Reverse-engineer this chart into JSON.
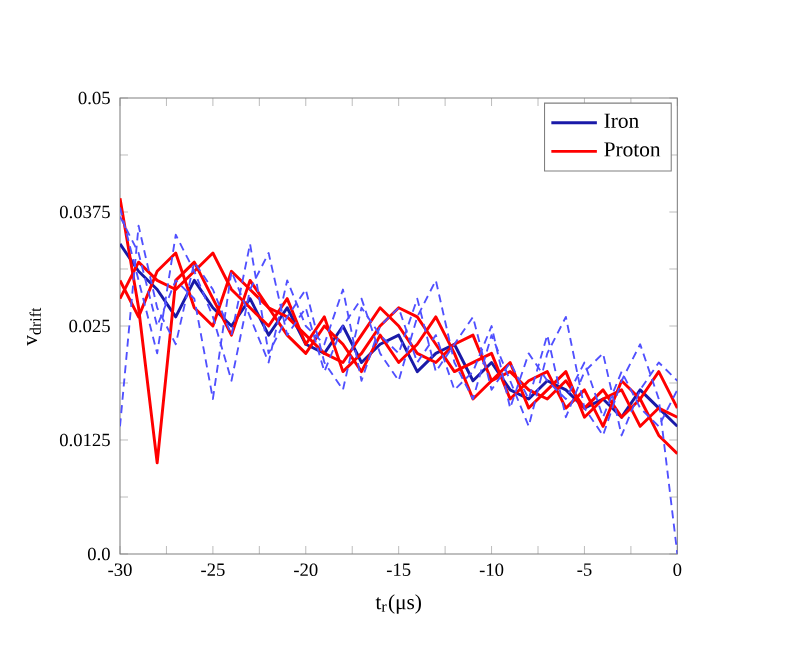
{
  "chart_data": {
    "type": "line",
    "xlabel": "t$_{r}$(μs)",
    "ylabel": "v$_{drift}$",
    "x": [
      -30,
      -29,
      -28,
      -27,
      -26,
      -25,
      -24,
      -23,
      -22,
      -21,
      -20,
      -19,
      -18,
      -17,
      -16,
      -15,
      -14,
      -13,
      -12,
      -11,
      -10,
      -9,
      -8,
      -7,
      -6,
      -5,
      -4,
      -3,
      -2,
      -1,
      0
    ],
    "series": [
      {
        "name": "Iron",
        "color": "#1a1aa8",
        "line_style": "solid",
        "values": [
          0.034,
          0.031,
          0.029,
          0.026,
          0.03,
          0.027,
          0.025,
          0.028,
          0.024,
          0.027,
          0.023,
          0.022,
          0.025,
          0.021,
          0.023,
          0.024,
          0.02,
          0.022,
          0.023,
          0.019,
          0.021,
          0.018,
          0.017,
          0.019,
          0.018,
          0.016,
          0.017,
          0.015,
          0.018,
          0.016,
          0.014
        ]
      },
      {
        "name": "Proton",
        "color": "#ff0000",
        "line_style": "solid",
        "values": [
          0.039,
          0.027,
          0.01,
          0.03,
          0.032,
          0.028,
          0.024,
          0.03,
          0.027,
          0.026,
          0.024,
          0.022,
          0.021,
          0.024,
          0.027,
          0.025,
          0.022,
          0.021,
          0.023,
          0.024,
          0.019,
          0.02,
          0.018,
          0.017,
          0.019,
          0.016,
          0.018,
          0.015,
          0.017,
          0.013,
          0.011
        ]
      },
      {
        "color": "#ff0000",
        "line_style": "solid",
        "values": [
          0.028,
          0.032,
          0.03,
          0.029,
          0.031,
          0.033,
          0.029,
          0.027,
          0.025,
          0.028,
          0.023,
          0.026,
          0.02,
          0.022,
          0.025,
          0.027,
          0.026,
          0.023,
          0.02,
          0.021,
          0.022,
          0.017,
          0.019,
          0.02,
          0.016,
          0.018,
          0.014,
          0.019,
          0.017,
          0.02,
          0.016
        ]
      },
      {
        "color": "#ff0000",
        "line_style": "solid",
        "values": [
          0.03,
          0.026,
          0.031,
          0.033,
          0.027,
          0.025,
          0.031,
          0.029,
          0.027,
          0.024,
          0.022,
          0.025,
          0.023,
          0.02,
          0.024,
          0.021,
          0.023,
          0.026,
          0.022,
          0.017,
          0.019,
          0.021,
          0.016,
          0.018,
          0.02,
          0.015,
          0.017,
          0.018,
          0.014,
          0.016,
          0.015
        ]
      },
      {
        "color": "#5050ff",
        "line_style": "dashed",
        "values": [
          0.038,
          0.03,
          0.022,
          0.035,
          0.031,
          0.026,
          0.019,
          0.029,
          0.033,
          0.024,
          0.027,
          0.02,
          0.025,
          0.028,
          0.022,
          0.019,
          0.026,
          0.03,
          0.021,
          0.017,
          0.024,
          0.019,
          0.014,
          0.022,
          0.026,
          0.016,
          0.013,
          0.019,
          0.023,
          0.017,
          0.0
        ]
      },
      {
        "color": "#5050ff",
        "line_style": "dashed",
        "values": [
          0.014,
          0.036,
          0.027,
          0.023,
          0.032,
          0.029,
          0.024,
          0.034,
          0.022,
          0.026,
          0.029,
          0.021,
          0.018,
          0.027,
          0.024,
          0.022,
          0.028,
          0.02,
          0.023,
          0.026,
          0.018,
          0.021,
          0.017,
          0.024,
          0.015,
          0.02,
          0.022,
          0.013,
          0.018,
          0.021,
          0.019
        ]
      },
      {
        "color": "#5050ff",
        "line_style": "dashed",
        "values": [
          0.037,
          0.033,
          0.025,
          0.03,
          0.028,
          0.017,
          0.031,
          0.026,
          0.021,
          0.03,
          0.025,
          0.023,
          0.029,
          0.019,
          0.025,
          0.027,
          0.021,
          0.024,
          0.018,
          0.02,
          0.025,
          0.016,
          0.022,
          0.019,
          0.017,
          0.021,
          0.015,
          0.02,
          0.016,
          0.014,
          0.018
        ]
      }
    ],
    "xlim": [
      -30,
      0
    ],
    "xticks": [
      -30,
      {
        "value": -27.5,
        "label": null
      },
      -25,
      {
        "value": -22.5,
        "label": null
      },
      -20,
      {
        "value": -17.5,
        "label": null
      },
      -15,
      {
        "value": -12.5,
        "label": null
      },
      -10,
      {
        "value": -7.5,
        "label": null
      },
      -5,
      {
        "value": -2.5,
        "label": null
      },
      0
    ],
    "ylim": [
      0,
      0.05
    ],
    "yticks": [
      {
        "value": 0,
        "label": "0.0"
      },
      {
        "value": 0.00625,
        "label": null
      },
      0.0125,
      {
        "value": 0.01875,
        "label": null
      },
      0.025,
      {
        "value": 0.03125,
        "label": null
      },
      0.0375,
      {
        "value": 0.04375,
        "label": null
      },
      0.05
    ],
    "grid": false,
    "legend": "top right"
  }
}
